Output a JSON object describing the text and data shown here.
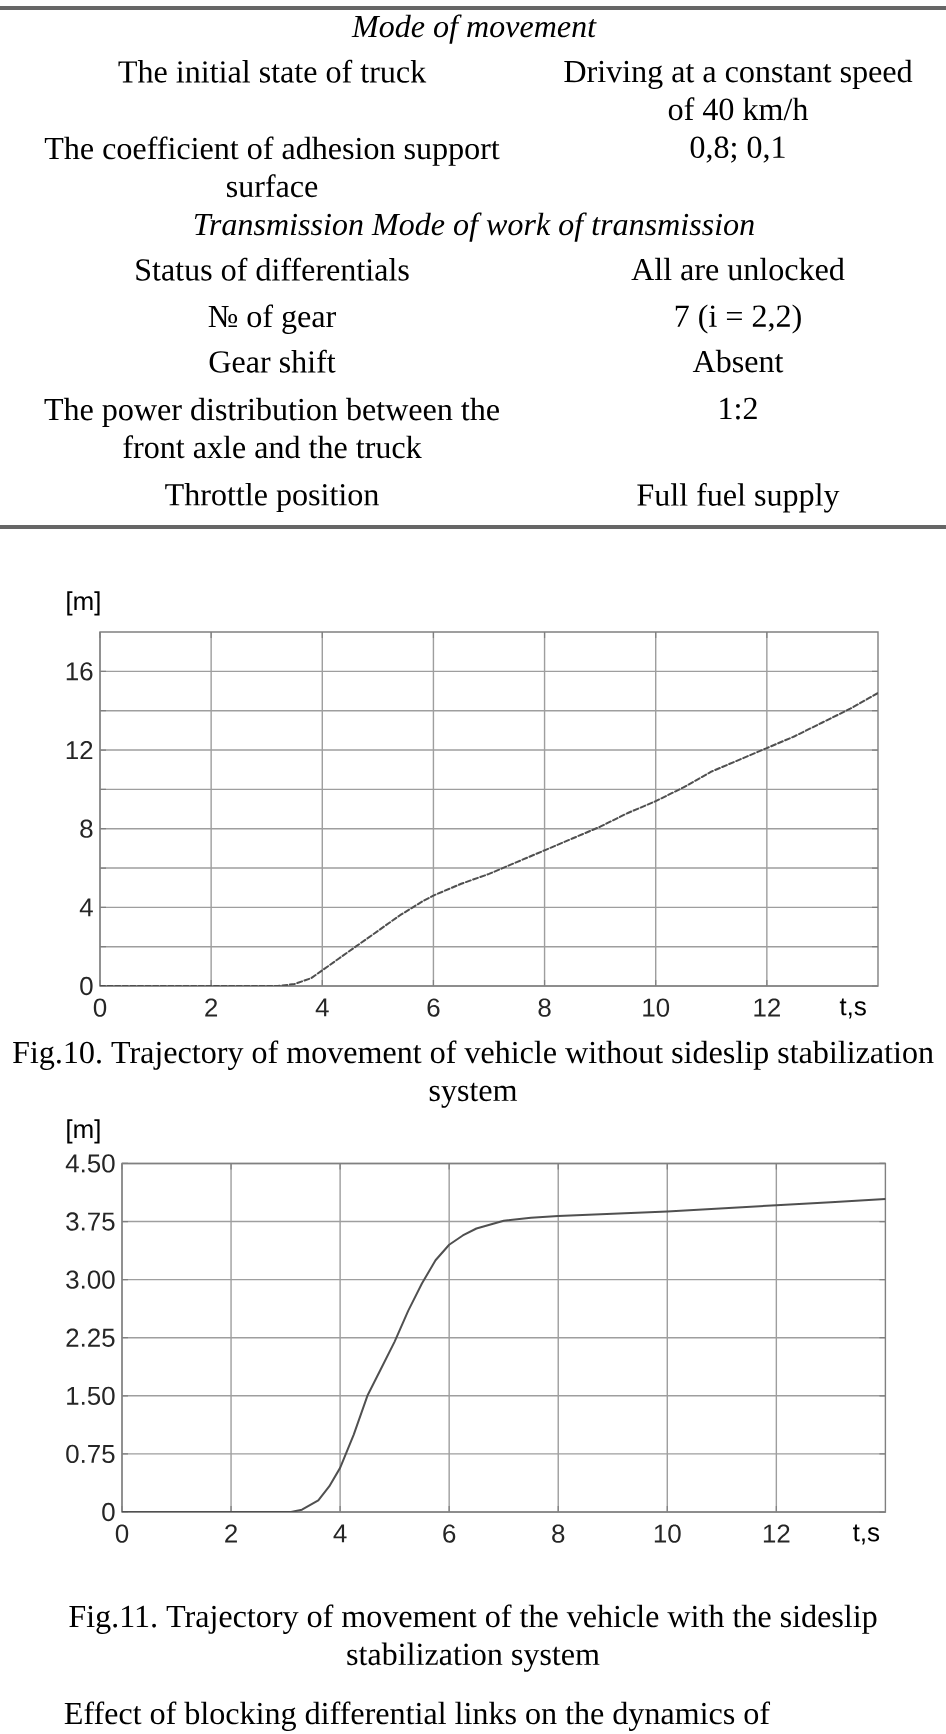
{
  "chart_data": [
    {
      "type": "other",
      "title": "Mode of movement",
      "annotations": [
        "The initial state of truck",
        "Driving at a constant speed of 40 km/h",
        "The coefficient of adhesion support surface",
        "0,8; 0,1"
      ]
    },
    {
      "type": "other",
      "title": "Transmission Mode of work of transmission",
      "annotations": [
        "Status of differentials",
        "All are unlocked",
        "№ of gear",
        "7 (i = 2,2)",
        "Gear shift",
        "Absent",
        "The power distribution between the front axle and the truck",
        "1:2",
        "Throttle position",
        "Full fuel supply"
      ]
    },
    {
      "type": "line",
      "ylabel": "[m]",
      "xlabel": "t,s",
      "color": "#505050",
      "line_style": "dashed",
      "grid": true,
      "xlim": [
        0,
        14
      ],
      "ylim": [
        0,
        18
      ],
      "xticks": [
        0,
        2,
        4,
        6,
        8,
        10,
        12
      ],
      "yticks": [
        0,
        {
          "value": 2,
          "label": null
        },
        4,
        {
          "value": 6,
          "label": null
        },
        8,
        {
          "value": 10,
          "label": null
        },
        12,
        {
          "value": 14,
          "label": null
        },
        16
      ],
      "x": [
        0,
        3.2,
        3.5,
        3.8,
        4,
        4.3,
        4.6,
        5,
        5.4,
        5.8,
        6,
        6.5,
        7,
        7.5,
        8,
        8.5,
        9,
        9.5,
        10,
        10.5,
        11,
        11.5,
        12,
        12.5,
        13,
        13.5,
        14
      ],
      "values": [
        0,
        0,
        0.1,
        0.4,
        0.8,
        1.4,
        2.0,
        2.8,
        3.6,
        4.3,
        4.6,
        5.2,
        5.7,
        6.3,
        6.9,
        7.5,
        8.1,
        8.8,
        9.4,
        10.1,
        10.9,
        11.5,
        12.1,
        12.7,
        13.4,
        14.1,
        14.9
      ],
      "annotations": [
        "Fig.10. Trajectory of movement of vehicle without sideslip stabilization system"
      ]
    },
    {
      "type": "line",
      "ylabel": "[m]",
      "xlabel": "t,s",
      "color": "#505050",
      "line_style": "solid",
      "grid": true,
      "xlim": [
        0,
        14
      ],
      "ylim": [
        0,
        4.5
      ],
      "xticks": [
        0,
        2,
        4,
        6,
        8,
        10,
        12
      ],
      "yticks": [
        0,
        0.75,
        {
          "value": 1.5,
          "label": "1.50"
        },
        2.25,
        {
          "value": 3,
          "label": "3.00"
        },
        3.75,
        {
          "value": 4.5,
          "label": "4.50"
        }
      ],
      "x": [
        0,
        3.1,
        3.3,
        3.6,
        3.8,
        4,
        4.25,
        4.5,
        4.75,
        5,
        5.25,
        5.5,
        5.75,
        6,
        6.25,
        6.5,
        7,
        7.5,
        8,
        9,
        10,
        11,
        12,
        13,
        14
      ],
      "values": [
        0,
        0,
        0.03,
        0.15,
        0.33,
        0.57,
        1.0,
        1.5,
        1.85,
        2.2,
        2.6,
        2.95,
        3.25,
        3.45,
        3.57,
        3.66,
        3.76,
        3.8,
        3.82,
        3.85,
        3.88,
        3.92,
        3.96,
        4.0,
        4.04
      ],
      "annotations": [
        "Fig.11. Trajectory of movement of the vehicle with the sideslip stabilization system"
      ]
    },
    {
      "type": "other",
      "annotations": [
        "Effect of blocking differential links on the dynamics of"
      ]
    }
  ]
}
